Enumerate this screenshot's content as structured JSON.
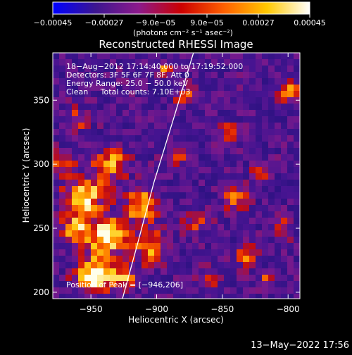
{
  "chart_data": {
    "type": "heatmap",
    "title": "Reconstructed RHESSI Image",
    "xlabel": "Heliocentric X (arcsec)",
    "ylabel": "Heliocentric Y (arcsec)",
    "xlim": [
      -979,
      -791
    ],
    "ylim": [
      195,
      387
    ],
    "x_ticks": [
      -950,
      -900,
      -850,
      -800
    ],
    "x_tick_labels": [
      "−950",
      "−900",
      "−850",
      "−800"
    ],
    "y_ticks": [
      200,
      250,
      300,
      350
    ],
    "y_tick_labels": [
      "200",
      "250",
      "300",
      "350"
    ],
    "colorbar": {
      "range": [
        -0.00045,
        0.00045
      ],
      "tick_values": [
        -0.00045,
        -0.00027,
        -9e-05,
        9e-05,
        0.00027,
        0.00045
      ],
      "tick_labels": [
        "−0.00045",
        "−0.00027",
        "−9.0e−05",
        "9.0e−05",
        "0.00027",
        "0.00045"
      ],
      "units_label": "(photons cm⁻² s⁻¹ asec⁻²)",
      "colors": [
        "#0000ff",
        "#3c1690",
        "#8c1a8c",
        "#cc0000",
        "#ff6000",
        "#ffc800",
        "#ffffff"
      ]
    },
    "annotations": [
      "18−Aug−2012 17:14:40.000 to 17:19:52.000",
      "Detectors: 3F 5F 6F 7F 8F, Att 0",
      "Energy Range: 25.0 − 50.0 keV",
      "Clean     Total counts: 7.10E+03"
    ],
    "position_label": "Position of Peak = [−946,206]",
    "peak": {
      "x": -946,
      "y": 206
    },
    "limb": [
      {
        "x": -926,
        "y": 195
      },
      {
        "x": -915,
        "y": 236
      },
      {
        "x": -902,
        "y": 286
      },
      {
        "x": -887,
        "y": 336
      },
      {
        "x": -872,
        "y": 387
      }
    ],
    "emission_blobs": [
      {
        "x": -948,
        "y": 213,
        "r": 13,
        "amp": 1.25
      },
      {
        "x": -938,
        "y": 243,
        "r": 15,
        "amp": 1.0
      },
      {
        "x": -955,
        "y": 275,
        "r": 14,
        "amp": 1.05
      },
      {
        "x": -962,
        "y": 250,
        "r": 11,
        "amp": 0.85
      },
      {
        "x": -935,
        "y": 300,
        "r": 12,
        "amp": 0.85
      },
      {
        "x": -912,
        "y": 268,
        "r": 13,
        "amp": 0.85
      },
      {
        "x": -905,
        "y": 235,
        "r": 12,
        "amp": 0.75
      },
      {
        "x": -925,
        "y": 212,
        "r": 10,
        "amp": 0.7
      },
      {
        "x": -970,
        "y": 300,
        "r": 9,
        "amp": 0.7
      },
      {
        "x": -960,
        "y": 335,
        "r": 9,
        "amp": 0.5
      },
      {
        "x": -885,
        "y": 305,
        "r": 8,
        "amp": 0.55
      },
      {
        "x": -870,
        "y": 255,
        "r": 9,
        "amp": 0.5
      },
      {
        "x": -840,
        "y": 272,
        "r": 9,
        "amp": 0.65
      },
      {
        "x": -832,
        "y": 228,
        "r": 8,
        "amp": 0.55
      },
      {
        "x": -822,
        "y": 290,
        "r": 7,
        "amp": 0.5
      },
      {
        "x": -805,
        "y": 250,
        "r": 8,
        "amp": 0.55
      },
      {
        "x": -800,
        "y": 357,
        "r": 8,
        "amp": 0.75
      },
      {
        "x": -880,
        "y": 355,
        "r": 7,
        "amp": 0.65
      },
      {
        "x": -845,
        "y": 325,
        "r": 7,
        "amp": 0.6
      },
      {
        "x": -895,
        "y": 375,
        "r": 6,
        "amp": 0.55
      },
      {
        "x": -860,
        "y": 208,
        "r": 8,
        "amp": 0.5
      },
      {
        "x": -815,
        "y": 210,
        "r": 6,
        "amp": 0.5
      }
    ]
  },
  "footer": {
    "date_label": "13−May−2022 17:56"
  }
}
